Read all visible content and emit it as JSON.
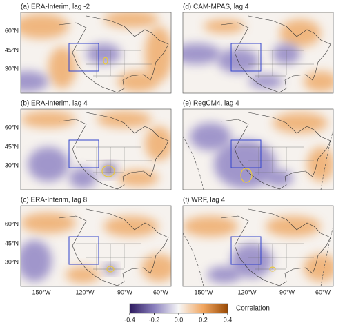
{
  "panels": [
    {
      "title": "(a) ERA-Interim, lag -2"
    },
    {
      "title": "(d) CAM-MPAS, lag 4"
    },
    {
      "title": "(b) ERA-Interim, lag 4"
    },
    {
      "title": "(e) RegCM4, lag 4"
    },
    {
      "title": "(c) ERA-Interim, lag 8"
    },
    {
      "title": "(f) WRF, lag 4"
    }
  ],
  "lat_labels": [
    "60°N",
    "45°N",
    "30°N"
  ],
  "lon_labels": [
    "150°W",
    "120°W",
    "90°W",
    "60°W"
  ],
  "colorbar": {
    "label": "Correlation",
    "lim": [
      -0.4,
      0.4
    ],
    "ticks": [
      -0.4,
      -0.2,
      {
        "value": 0,
        "label": "0.0"
      },
      0.2,
      0.4
    ]
  }
}
